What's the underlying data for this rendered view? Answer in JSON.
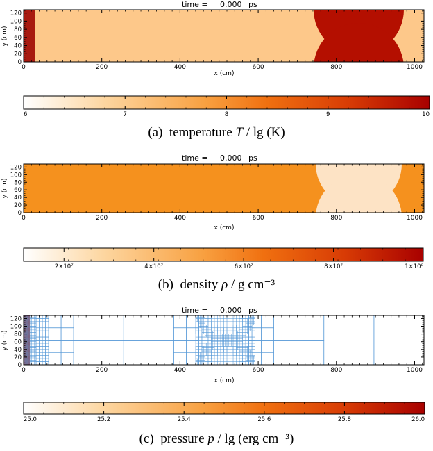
{
  "panels": [
    {
      "id": "a",
      "time_label": "time =",
      "time_value": "0.000",
      "time_unit": "ps",
      "xlabel": "x (cm)",
      "ylabel": "y (cm)",
      "x_ticks": [
        "0",
        "200",
        "400",
        "600",
        "800",
        "1000"
      ],
      "y_ticks": [
        "0",
        "20",
        "40",
        "60",
        "80",
        "100",
        "120"
      ],
      "colorbar_ticks": [
        "6",
        "7",
        "8",
        "9",
        "10"
      ],
      "caption_label": "(a)",
      "caption_text": "temperature",
      "caption_symbol": "T",
      "caption_unit": "/ lg (K)",
      "colors": {
        "background": "#fdc88a",
        "hot": "#b40f00",
        "edge": "#a81a10"
      }
    },
    {
      "id": "b",
      "time_label": "time =",
      "time_value": "0.000",
      "time_unit": "ps",
      "xlabel": "x (cm)",
      "ylabel": "y (cm)",
      "x_ticks": [
        "0",
        "200",
        "400",
        "600",
        "800",
        "1000"
      ],
      "y_ticks": [
        "0",
        "20",
        "40",
        "60",
        "80",
        "100",
        "120"
      ],
      "colorbar_ticks": [
        "2×10⁷",
        "4×10⁷",
        "6×10⁷",
        "8×10⁷",
        "1×10⁸"
      ],
      "caption_label": "(b)",
      "caption_text": "density",
      "caption_symbol": "ρ",
      "caption_unit": "/ g cm⁻³",
      "colors": {
        "background": "#f5911e",
        "light": "#fde3c5"
      }
    },
    {
      "id": "c",
      "time_label": "time =",
      "time_value": "0.000",
      "time_unit": "ps",
      "xlabel": "x (cm)",
      "ylabel": "y (cm)",
      "x_ticks": [
        "0",
        "200",
        "400",
        "600",
        "800",
        "1000"
      ],
      "y_ticks": [
        "0",
        "20",
        "40",
        "60",
        "80",
        "100",
        "120"
      ],
      "colorbar_ticks": [
        "25.0",
        "25.2",
        "25.4",
        "25.6",
        "25.8",
        "26.0"
      ],
      "caption_label": "(c)",
      "caption_text": "pressure",
      "caption_symbol": "p",
      "caption_unit": "/ lg (erg cm⁻³)",
      "colors": {
        "background": "#ffffff",
        "grid": "#5a9bd8",
        "edge": "#a81a10"
      }
    }
  ],
  "colorbar_gradient": [
    "#ffffff",
    "#fdd6a0",
    "#f8a040",
    "#f07010",
    "#d83c05",
    "#a80000"
  ]
}
